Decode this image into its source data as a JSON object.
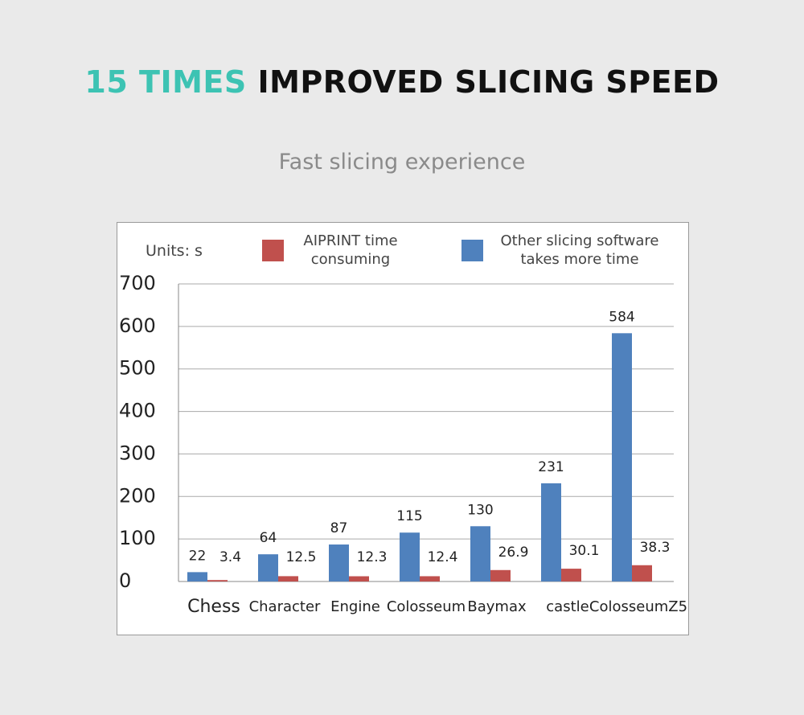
{
  "header": {
    "title_highlight": "15 TIMES",
    "title_rest": "IMPROVED SLICING SPEED",
    "subtitle": "Fast slicing experience"
  },
  "chart_data": {
    "type": "bar",
    "units_label": "Units: s",
    "categories": [
      "Chess",
      "Character",
      "Engine",
      "Colosseum",
      "Baymax",
      "castle",
      "ColosseumZ5"
    ],
    "series": [
      {
        "name": "AIPRINT time consuming",
        "color": "#c0504d",
        "values": [
          3.4,
          12.5,
          12.3,
          12.4,
          26.9,
          30.1,
          38.3
        ]
      },
      {
        "name": "Other slicing software takes more time",
        "color": "#4f81bd",
        "values": [
          22,
          64,
          87,
          115,
          130,
          231,
          584
        ]
      }
    ],
    "ylim": [
      0,
      700
    ],
    "yticks": [
      0,
      100,
      200,
      300,
      400,
      500,
      600,
      700
    ],
    "grid": true
  }
}
